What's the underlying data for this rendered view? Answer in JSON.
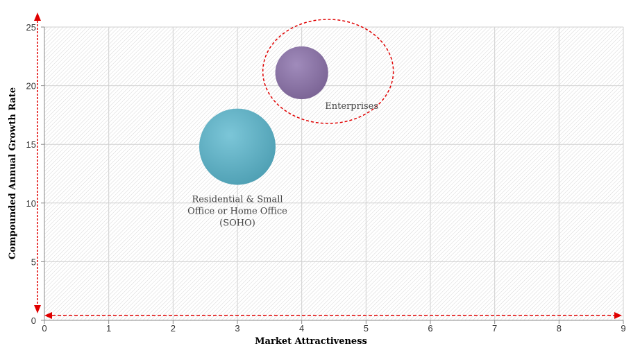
{
  "chart_data": {
    "type": "bubble",
    "xlabel": "Market Attractiveness",
    "ylabel": "Compounded Annual Growth Rate",
    "xlim": [
      0,
      9
    ],
    "ylim": [
      0,
      25
    ],
    "xticks": [
      "0",
      "1",
      "2",
      "3",
      "4",
      "5",
      "6",
      "7",
      "8",
      "9"
    ],
    "yticks": [
      "0",
      "5",
      "10",
      "15",
      "20",
      "25"
    ],
    "grid": true,
    "series": [
      {
        "label": "Residential & Small Office or Home Office (SOHO)",
        "label_lines": [
          "Residential & Small",
          "Office or Home Office",
          "(SOHO)"
        ],
        "x": 3,
        "y": 14.8,
        "size": 1.0,
        "color": "#5fb3c8"
      },
      {
        "label": "Enterprises",
        "label_lines": [
          "Enterprises"
        ],
        "x": 4,
        "y": 21.1,
        "size": 0.48,
        "color": "#8a72a6"
      }
    ],
    "highlight": {
      "target": "Enterprises",
      "color": "#e00000"
    }
  }
}
